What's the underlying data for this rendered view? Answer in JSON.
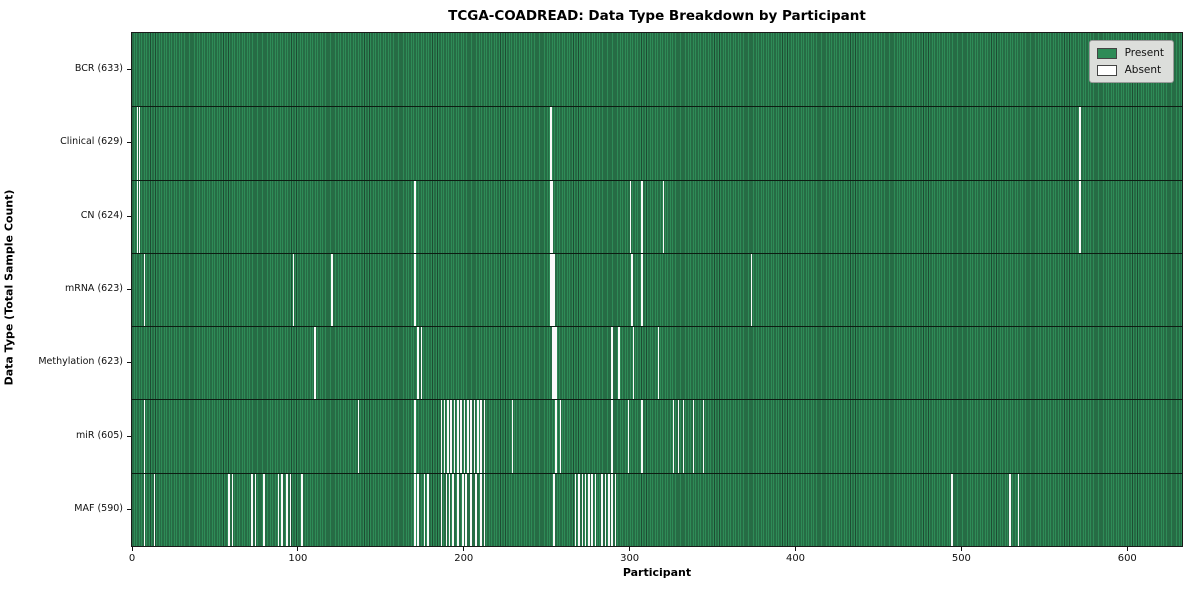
{
  "chart_data": {
    "type": "heatmap",
    "title": "TCGA-COADREAD: Data Type Breakdown by Participant",
    "xlabel": "Participant",
    "ylabel": "Data Type (Total Sample Count)",
    "n_participants": 633,
    "x_range": [
      0,
      633
    ],
    "x_ticks": [
      0,
      100,
      200,
      300,
      400,
      500,
      600
    ],
    "grid": false,
    "legend_position": "upper right",
    "legend_items": [
      {
        "label": "Present",
        "color": "#2e8b57"
      },
      {
        "label": "Absent",
        "color": "#ffffff"
      }
    ],
    "colors": {
      "present_fill": "#2e8b57",
      "present_edge": "#1d4d33",
      "absent": "#fafafa",
      "row_separator": "#0c1c12"
    },
    "rows": [
      {
        "key": "bcr",
        "data_type": "BCR",
        "present_count": 633,
        "label": "BCR (633)",
        "absent_participants": []
      },
      {
        "key": "clinical",
        "data_type": "Clinical",
        "present_count": 629,
        "label": "Clinical (629)",
        "absent_participants": [
          3,
          4,
          252,
          571
        ]
      },
      {
        "key": "cn",
        "data_type": "CN",
        "present_count": 624,
        "label": "CN (624)",
        "absent_participants": [
          3,
          4,
          170,
          252,
          253,
          300,
          307,
          320,
          571
        ]
      },
      {
        "key": "mrna",
        "data_type": "mRNA",
        "present_count": 623,
        "label": "mRNA (623)",
        "absent_participants": [
          7,
          97,
          120,
          170,
          252,
          253,
          254,
          301,
          307,
          373
        ]
      },
      {
        "key": "methylation",
        "data_type": "Methylation",
        "present_count": 623,
        "label": "Methylation (623)",
        "absent_participants": [
          110,
          172,
          174,
          253,
          254,
          255,
          289,
          293,
          302,
          317
        ]
      },
      {
        "key": "mir",
        "data_type": "miR",
        "present_count": 605,
        "label": "miR (605)",
        "absent_participants": [
          7,
          136,
          170,
          186,
          188,
          190,
          192,
          194,
          196,
          198,
          200,
          202,
          204,
          206,
          208,
          210,
          212,
          229,
          255,
          258,
          289,
          299,
          307,
          326,
          329,
          332,
          338,
          344
        ]
      },
      {
        "key": "maf",
        "data_type": "MAF",
        "present_count": 590,
        "label": "MAF (590)",
        "absent_participants": [
          7,
          13,
          58,
          60,
          72,
          74,
          79,
          88,
          90,
          93,
          95,
          102,
          170,
          172,
          176,
          178,
          186,
          189,
          191,
          193,
          196,
          199,
          201,
          204,
          207,
          210,
          212,
          254,
          267,
          269,
          271,
          273,
          275,
          277,
          279,
          283,
          285,
          287,
          289,
          291,
          494,
          529,
          534
        ]
      }
    ]
  }
}
